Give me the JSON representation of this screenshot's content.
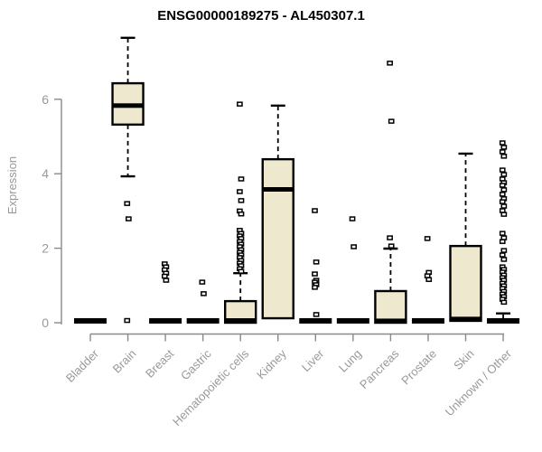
{
  "page": {
    "background": "#ffffff"
  },
  "style": {
    "box_fill": "#EDE8CE",
    "box_stroke": "#000000",
    "median_color": "#000000",
    "whisker_color": "#000000",
    "outlier_stroke": "#000000",
    "outlier_fill": "#ffffff",
    "axis_color": "#8a8a8a",
    "tick_label_color": "#999999",
    "title_color": "#000000"
  },
  "chart_data": {
    "type": "boxplot",
    "title": "ENSG00000189275 - AL450307.1",
    "xlabel": "",
    "ylabel": "Expression",
    "ylim": [
      0,
      7.8
    ],
    "yticks": [
      0,
      2,
      4,
      6
    ],
    "grid": false,
    "legend": "none",
    "categories": [
      "Bladder",
      "Brain",
      "Breast",
      "Gastric",
      "Hematopoietic cells",
      "Kidney",
      "Liver",
      "Lung",
      "Pancreas",
      "Prostate",
      "Skin",
      "Unknown / Other"
    ],
    "boxes": [
      {
        "category": "Bladder",
        "whisker_low": 0,
        "q1": 0,
        "median": 0.05,
        "q3": 0.1,
        "whisker_high": 0.1,
        "outliers": []
      },
      {
        "category": "Brain",
        "whisker_low": 3.93,
        "q1": 5.32,
        "median": 5.83,
        "q3": 6.43,
        "whisker_high": 7.65,
        "outliers": [
          3.2,
          2.79,
          0.06
        ]
      },
      {
        "category": "Breast",
        "whisker_low": 0,
        "q1": 0,
        "median": 0.05,
        "q3": 0.1,
        "whisker_high": 0.1,
        "outliers": [
          1.58,
          1.5,
          1.42,
          1.33,
          1.25,
          1.14
        ]
      },
      {
        "category": "Gastric",
        "whisker_low": 0,
        "q1": 0,
        "median": 0.05,
        "q3": 0.1,
        "whisker_high": 0.1,
        "outliers": [
          1.09,
          0.78
        ]
      },
      {
        "category": "Hematopoietic cells",
        "whisker_low": 0,
        "q1": 0,
        "median": 0.06,
        "q3": 0.58,
        "whisker_high": 1.33,
        "outliers": [
          5.87,
          3.86,
          3.52,
          3.28,
          3.0,
          2.92,
          2.48,
          2.4,
          2.33,
          2.26,
          2.18,
          2.11,
          2.04,
          1.96,
          1.89,
          1.82,
          1.75,
          1.67,
          1.6,
          1.53,
          1.45,
          1.38
        ]
      },
      {
        "category": "Kidney",
        "whisker_low": 0.12,
        "q1": 0.12,
        "median": 3.58,
        "q3": 4.39,
        "whisker_high": 5.83,
        "outliers": []
      },
      {
        "category": "Liver",
        "whisker_low": 0,
        "q1": 0,
        "median": 0.05,
        "q3": 0.1,
        "whisker_high": 0.1,
        "outliers": [
          3.01,
          1.63,
          1.31,
          1.14,
          1.09,
          1.02,
          0.95,
          0.22
        ]
      },
      {
        "category": "Lung",
        "whisker_low": 0,
        "q1": 0,
        "median": 0.05,
        "q3": 0.1,
        "whisker_high": 0.1,
        "outliers": [
          2.79,
          2.04
        ]
      },
      {
        "category": "Pancreas",
        "whisker_low": 0,
        "q1": 0,
        "median": 0.05,
        "q3": 0.85,
        "whisker_high": 1.99,
        "outliers": [
          6.97,
          5.41,
          2.28,
          2.06
        ]
      },
      {
        "category": "Prostate",
        "whisker_low": 0,
        "q1": 0,
        "median": 0.05,
        "q3": 0.1,
        "whisker_high": 0.1,
        "outliers": [
          2.26,
          1.35,
          1.26,
          1.16
        ]
      },
      {
        "category": "Skin",
        "whisker_low": 0.05,
        "q1": 0.05,
        "median": 0.1,
        "q3": 2.06,
        "whisker_high": 4.54,
        "outliers": []
      },
      {
        "category": "Unknown / Other",
        "whisker_low": 0,
        "q1": 0,
        "median": 0.05,
        "q3": 0.1,
        "whisker_high": 0.25,
        "outliers": [
          4.83,
          4.71,
          4.59,
          4.47,
          4.1,
          3.98,
          3.86,
          3.76,
          3.69,
          3.57,
          3.45,
          3.33,
          3.25,
          3.13,
          3.01,
          2.91,
          2.4,
          2.28,
          2.18,
          1.94,
          1.82,
          1.7,
          1.5,
          1.43,
          1.36,
          1.28,
          1.21,
          1.14,
          1.06,
          0.99,
          0.92,
          0.84,
          0.77,
          0.7,
          0.63,
          0.55
        ]
      }
    ]
  }
}
